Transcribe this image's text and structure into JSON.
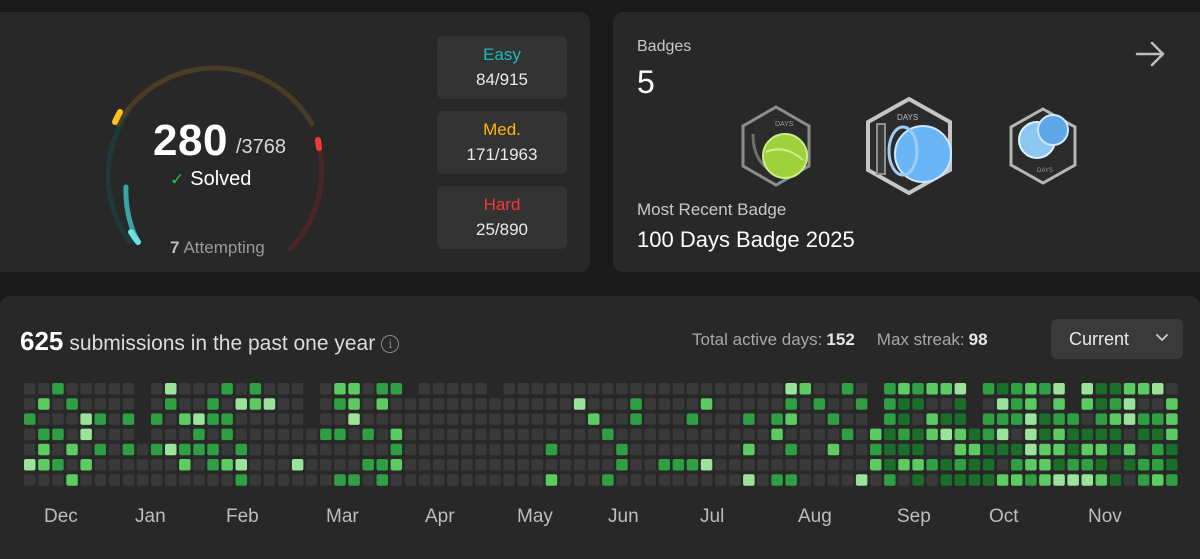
{
  "stats": {
    "solved": "280",
    "total": "/3768",
    "solved_label": "Solved",
    "attempting_count": "7",
    "attempting_label": "Attempting",
    "ring_colors": {
      "easy": "#1cbaba",
      "medium": "#ffb700",
      "hard": "#f63737"
    },
    "difficulties": [
      {
        "label": "Easy",
        "value": "84/915"
      },
      {
        "label": "Med.",
        "value": "171/1963"
      },
      {
        "label": "Hard",
        "value": "25/890"
      }
    ]
  },
  "badges": {
    "title": "Badges",
    "count": "5",
    "icons": [
      "50-days-badge-icon",
      "100-days-badge-icon",
      "daily-badge-icon"
    ],
    "icon_text": "DAYS",
    "recent_label": "Most Recent Badge",
    "recent_name": "100 Days Badge 2025"
  },
  "activity": {
    "count": "625",
    "headline": "submissions in the past one year",
    "active_days_label": "Total active days:",
    "active_days": "152",
    "max_streak_label": "Max streak:",
    "max_streak": "98",
    "select_value": "Current",
    "months": [
      "Dec",
      "Jan",
      "Feb",
      "Mar",
      "Apr",
      "May",
      "Jun",
      "Jul",
      "Aug",
      "Sep",
      "Oct",
      "Nov"
    ],
    "level_colors": [
      "#393939",
      "#1b6d2a",
      "#2ea043",
      "#5bcb62",
      "#9be39b"
    ]
  }
}
